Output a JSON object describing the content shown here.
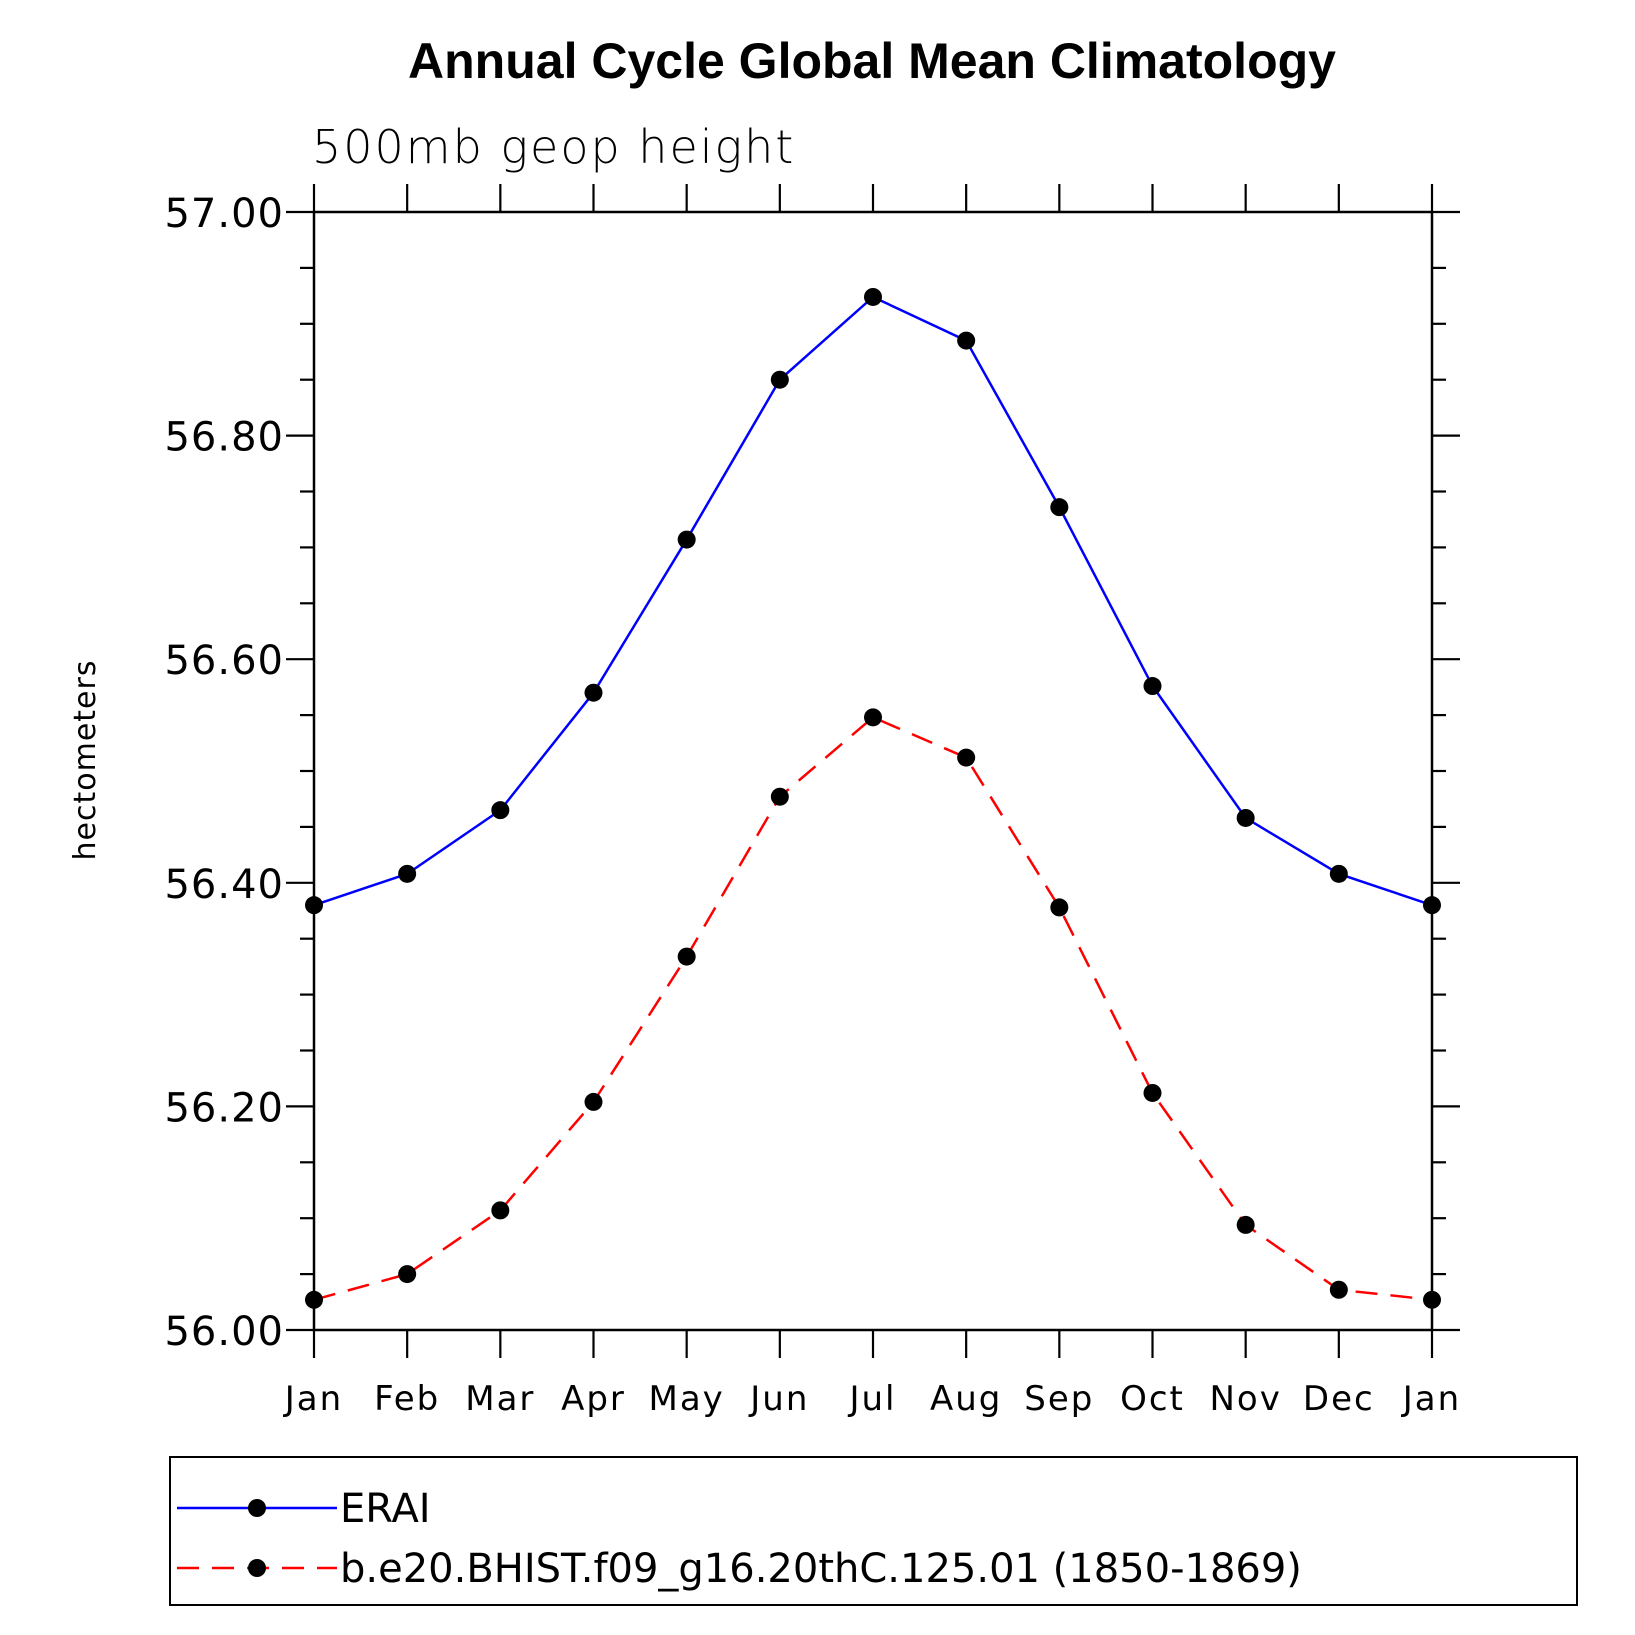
{
  "chart_data": {
    "type": "line",
    "title": "Annual Cycle Global Mean Climatology",
    "subtitle": "500mb geop height",
    "ylabel": "hectometers",
    "xlabel": "",
    "categories": [
      "Jan",
      "Feb",
      "Mar",
      "Apr",
      "May",
      "Jun",
      "Jul",
      "Aug",
      "Sep",
      "Oct",
      "Nov",
      "Dec",
      "Jan"
    ],
    "ylim": [
      56.0,
      57.0
    ],
    "yticks": [
      "56.00",
      "56.20",
      "56.40",
      "56.60",
      "56.80",
      "57.00"
    ],
    "grid": false,
    "legend_placement": "bottom",
    "series": [
      {
        "name": "ERAI",
        "color": "#0000ff",
        "line_style": "solid",
        "marker": "filled-circle",
        "values": [
          56.38,
          56.408,
          56.465,
          56.57,
          56.707,
          56.85,
          56.924,
          56.885,
          56.736,
          56.576,
          56.458,
          56.408,
          56.38
        ]
      },
      {
        "name": "b.e20.BHIST.f09_g16.20thC.125.01 (1850-1869)",
        "color": "#ff0000",
        "line_style": "dashed",
        "marker": "filled-circle",
        "values": [
          56.027,
          56.05,
          56.107,
          56.204,
          56.334,
          56.477,
          56.548,
          56.512,
          56.378,
          56.212,
          56.094,
          56.036,
          56.027
        ]
      }
    ]
  }
}
